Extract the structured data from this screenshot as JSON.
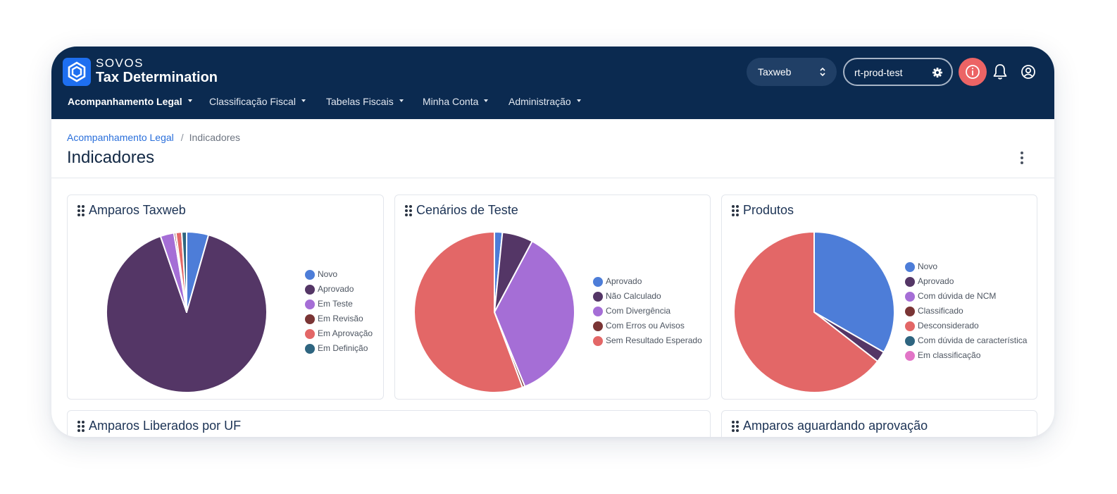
{
  "app": {
    "brand_top": "SOVOS",
    "brand_title": "Tax Determination"
  },
  "header": {
    "system_select": "Taxweb",
    "environment": "rt-prod-test",
    "icons": [
      "logo-icon",
      "chevron-up-down-icon",
      "gear-icon",
      "info-icon",
      "bell-icon",
      "user-icon"
    ]
  },
  "nav": {
    "items": [
      {
        "label": "Acompanhamento Legal",
        "active": true
      },
      {
        "label": "Classificação Fiscal",
        "active": false
      },
      {
        "label": "Tabelas Fiscais",
        "active": false
      },
      {
        "label": "Minha Conta",
        "active": false
      },
      {
        "label": "Administração",
        "active": false
      }
    ]
  },
  "breadcrumb": {
    "parent": "Acompanhamento Legal",
    "separator": "/",
    "current": "Indicadores"
  },
  "page": {
    "title": "Indicadores"
  },
  "colors": {
    "header_bg": "#0b2a50",
    "accent": "#2a6fdb",
    "novo": "#4d7dd8",
    "aprovado": "#543666",
    "em_teste": "#a56ed6",
    "em_revisao": "#7a3535",
    "em_aprovacao": "#e36767",
    "em_definicao": "#2e6580",
    "em_classificacao": "#e275c7"
  },
  "cards": [
    {
      "title": "Amparos Taxweb",
      "chart_data": {
        "type": "pie",
        "labels": [
          "Novo",
          "Aprovado",
          "Em Teste",
          "Em Revisão",
          "Em Aprovação",
          "Em Definição"
        ],
        "values": [
          4.5,
          92.3,
          2.8,
          0.4,
          1.2,
          1.0
        ],
        "colors": [
          "#4d7dd8",
          "#543666",
          "#a56ed6",
          "#7a3535",
          "#e36767",
          "#2e6580"
        ],
        "start_angle_deg": 0,
        "legend_position": "right"
      }
    },
    {
      "title": "Cenários de Teste",
      "chart_data": {
        "type": "pie",
        "labels": [
          "Aprovado",
          "Não Calculado",
          "Com Divergência",
          "Com Erros ou Avisos",
          "Sem Resultado Esperado"
        ],
        "values": [
          1.6,
          6.2,
          36.0,
          0.5,
          55.7
        ],
        "colors": [
          "#4d7dd8",
          "#543666",
          "#a56ed6",
          "#7a3535",
          "#e36767"
        ],
        "start_angle_deg": 0,
        "legend_position": "right"
      }
    },
    {
      "title": "Produtos",
      "chart_data": {
        "type": "pie",
        "labels": [
          "Novo",
          "Aprovado",
          "Com dúvida de NCM",
          "Classificado",
          "Desconsiderado",
          "Com dúvida de característica",
          "Em classificação"
        ],
        "values": [
          33.3,
          2.2,
          0,
          0,
          64.5,
          0,
          0
        ],
        "colors": [
          "#4d7dd8",
          "#543666",
          "#a56ed6",
          "#7a3535",
          "#e36767",
          "#2e6580",
          "#e275c7"
        ],
        "start_angle_deg": 0,
        "legend_position": "right"
      }
    },
    {
      "title": "Amparos Liberados por UF"
    },
    {
      "title": "Amparos aguardando aprovação"
    }
  ]
}
